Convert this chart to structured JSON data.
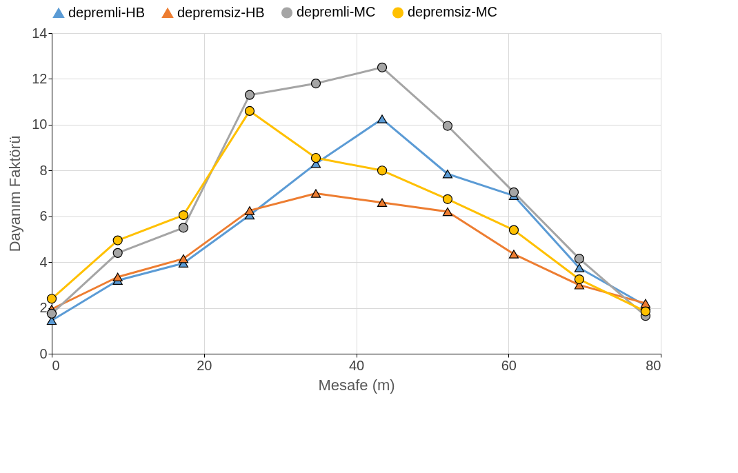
{
  "chart_data": {
    "type": "line",
    "xlabel": "Mesafe (m)",
    "ylabel": "Dayanım Faktörü",
    "x": [
      0,
      8.67,
      17.3,
      26,
      34.7,
      43.4,
      52,
      60.7,
      69.3,
      78
    ],
    "series": [
      {
        "name": "depremli-HB",
        "color": "#5b9bd5",
        "marker": "triangle",
        "values": [
          1.45,
          3.2,
          3.95,
          6.05,
          8.3,
          10.25,
          7.85,
          6.9,
          3.75,
          2.1
        ]
      },
      {
        "name": "depremsiz-HB",
        "color": "#ed7d31",
        "marker": "triangle",
        "values": [
          1.95,
          3.35,
          4.15,
          6.25,
          7.0,
          6.6,
          6.2,
          4.35,
          3.0,
          2.2
        ]
      },
      {
        "name": "depremli-MC",
        "color": "#a5a5a5",
        "marker": "circle",
        "values": [
          1.75,
          4.4,
          5.5,
          11.3,
          11.8,
          12.5,
          9.95,
          7.05,
          4.15,
          1.65
        ]
      },
      {
        "name": "depremsiz-MC",
        "color": "#ffc000",
        "marker": "circle",
        "values": [
          2.4,
          4.95,
          6.05,
          10.6,
          8.55,
          8.0,
          6.75,
          5.4,
          3.25,
          1.85
        ]
      }
    ],
    "xlim": [
      0,
      80
    ],
    "xticks": [
      0,
      20,
      40,
      60,
      80
    ],
    "ylim": [
      0,
      14
    ],
    "yticks": [
      0,
      2,
      4,
      6,
      8,
      10,
      12,
      14
    ],
    "grid": true,
    "legend": "top",
    "line_style": "solid"
  }
}
